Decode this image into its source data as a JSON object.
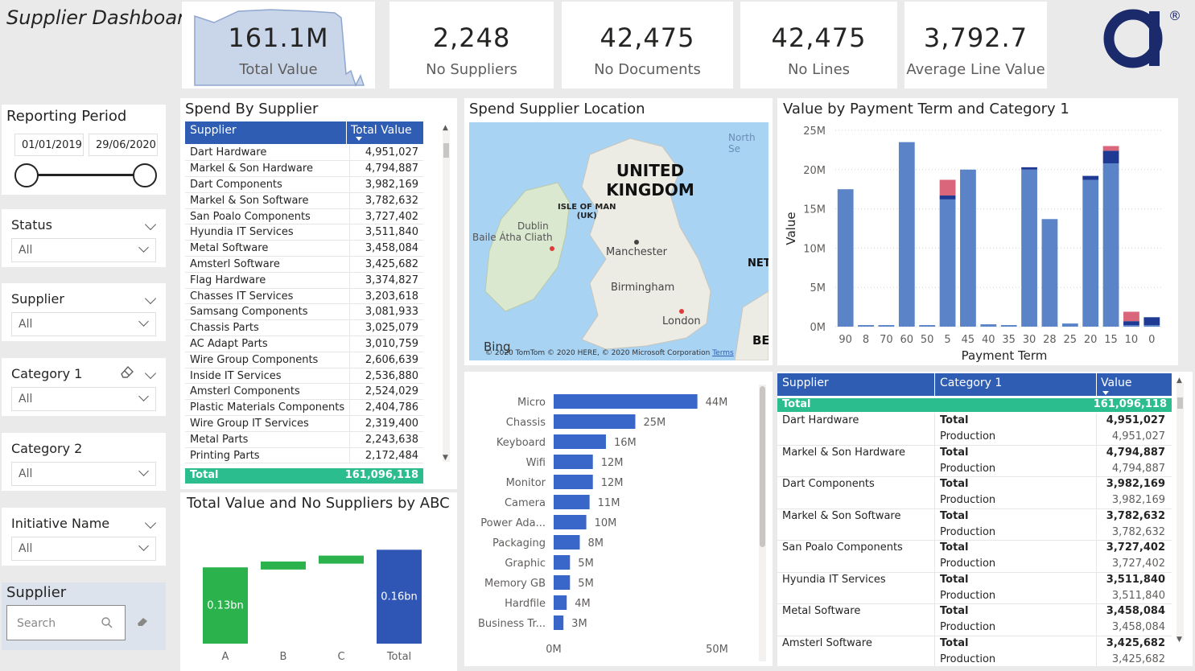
{
  "header": {
    "title": "Supplier Dashboard",
    "logo_registered": "®"
  },
  "kpis": [
    {
      "value": "161.1M",
      "label": "Total Value"
    },
    {
      "value": "2,248",
      "label": "No Suppliers"
    },
    {
      "value": "42,475",
      "label": "No Documents"
    },
    {
      "value": "42,475",
      "label": "No Lines"
    },
    {
      "value": "3,792.7",
      "label": "Average Line Value"
    }
  ],
  "reporting_period": {
    "title": "Reporting Period",
    "start": "01/01/2019",
    "end": "29/06/2020"
  },
  "slicers": [
    {
      "title": "Status",
      "value": "All"
    },
    {
      "title": "Supplier",
      "value": "All"
    },
    {
      "title": "Category 1",
      "value": "All"
    },
    {
      "title": "Category 2",
      "value": "All"
    },
    {
      "title": "Initiative Name",
      "value": "All"
    }
  ],
  "supplier_search": {
    "title": "Supplier",
    "placeholder": "Search"
  },
  "spend_by_supplier": {
    "title": "Spend By Supplier",
    "col_supplier": "Supplier",
    "col_value": "Total Value",
    "rows": [
      [
        "Dart Hardware",
        "4,951,027"
      ],
      [
        "Markel & Son Hardware",
        "4,794,887"
      ],
      [
        "Dart Components",
        "3,982,169"
      ],
      [
        "Markel & Son Software",
        "3,782,632"
      ],
      [
        "San Poalo Components",
        "3,727,402"
      ],
      [
        "Hyundia IT Services",
        "3,511,840"
      ],
      [
        "Metal Software",
        "3,458,084"
      ],
      [
        "Amsterl Software",
        "3,425,682"
      ],
      [
        "Flag Hardware",
        "3,374,827"
      ],
      [
        "Chasses IT Services",
        "3,203,618"
      ],
      [
        "Samsang Components",
        "3,081,933"
      ],
      [
        "Chassis Parts",
        "3,025,079"
      ],
      [
        "AC Adapt Parts",
        "3,010,759"
      ],
      [
        "Wire Group Components",
        "2,606,639"
      ],
      [
        "Inside IT Services",
        "2,536,880"
      ],
      [
        "Amsterl Components",
        "2,524,029"
      ],
      [
        "Plastic Materials Components",
        "2,404,786"
      ],
      [
        "Wire Group IT Services",
        "2,319,400"
      ],
      [
        "Metal Parts",
        "2,243,638"
      ],
      [
        "Printing Parts",
        "2,172,484"
      ]
    ],
    "total_label": "Total",
    "total_value": "161,096,118"
  },
  "map": {
    "title": "Spend  Supplier Location",
    "labels": {
      "uk_line1": "UNITED",
      "uk_line2": "KINGDOM",
      "isle_line1": "ISLE OF MAN",
      "isle_line2": "(UK)",
      "dublin": "Dublin",
      "baile": "Baile Átha Cliath",
      "manchester": "Manchester",
      "birmingham": "Birmingham",
      "london": "London",
      "north_sea": "North Se",
      "net": "NET",
      "be": "BE"
    },
    "bing": "Bing",
    "copyright": "© 2020 TomTom © 2020 HERE, © 2020 Microsoft Corporation",
    "terms": "Terms"
  },
  "payment_chart": {
    "title": "Value by Payment Term and Category 1",
    "ylabel": "Value",
    "xlabel": "Payment Term",
    "colors": {
      "blue": "#5b84c8",
      "red": "#d9667a",
      "navy": "#1f3a93"
    }
  },
  "waterfall": {
    "title": "Total Value and No Suppliers by ABC",
    "colors": {
      "increase": "#2bb24c",
      "total": "#2f55b5"
    }
  },
  "category_chart": {
    "color": "#3867c9"
  },
  "matrix": {
    "col_supplier": "Supplier",
    "col_category": "Category 1",
    "col_value": "Value",
    "total_label": "Total",
    "total_value": "161,096,118",
    "rows": [
      {
        "supplier": "Dart Hardware",
        "total_label": "Total",
        "total": "4,951,027",
        "sub_label": "Production",
        "sub": "4,951,027"
      },
      {
        "supplier": "Markel & Son Hardware",
        "total_label": "Total",
        "total": "4,794,887",
        "sub_label": "Production",
        "sub": "4,794,887"
      },
      {
        "supplier": "Dart Components",
        "total_label": "Total",
        "total": "3,982,169",
        "sub_label": "Production",
        "sub": "3,982,169"
      },
      {
        "supplier": "Markel & Son Software",
        "total_label": "Total",
        "total": "3,782,632",
        "sub_label": "Production",
        "sub": "3,782,632"
      },
      {
        "supplier": "San Poalo Components",
        "total_label": "Total",
        "total": "3,727,402",
        "sub_label": "Production",
        "sub": "3,727,402"
      },
      {
        "supplier": "Hyundia IT Services",
        "total_label": "Total",
        "total": "3,511,840",
        "sub_label": "Production",
        "sub": "3,511,840"
      },
      {
        "supplier": "Metal Software",
        "total_label": "Total",
        "total": "3,458,084",
        "sub_label": "Production",
        "sub": "3,458,084"
      },
      {
        "supplier": "Amsterl Software",
        "total_label": "Total",
        "total": "3,425,682",
        "sub_label": "Production",
        "sub": "3,425,682"
      }
    ]
  },
  "chart_data": [
    {
      "type": "bar",
      "title": "Value by Payment Term and Category 1",
      "xlabel": "Payment Term",
      "ylabel": "Value",
      "ylim": [
        0,
        25000000
      ],
      "yticks": [
        "0M",
        "5M",
        "10M",
        "15M",
        "20M",
        "25M"
      ],
      "categories": [
        "90",
        "8",
        "70",
        "60",
        "50",
        "5",
        "45",
        "40",
        "35",
        "30",
        "28",
        "25",
        "20",
        "15",
        "10",
        "0"
      ],
      "series": [
        {
          "values": [
            17500000,
            200000,
            200000,
            23500000,
            200000,
            16200000,
            20000000,
            300000,
            200000,
            20000000,
            13700000,
            400000,
            18700000,
            20800000,
            200000,
            200000
          ]
        },
        {
          "values": [
            0,
            0,
            0,
            0,
            0,
            2000000,
            0,
            0,
            0,
            0,
            0,
            0,
            0,
            600000,
            1200000,
            0
          ]
        },
        {
          "values": [
            0,
            0,
            0,
            0,
            0,
            500000,
            0,
            0,
            0,
            300000,
            0,
            0,
            500000,
            1600000,
            500000,
            1000000
          ]
        }
      ]
    },
    {
      "type": "bar",
      "title": "",
      "orientation": "horizontal",
      "xlim": [
        0,
        50
      ],
      "xticks": [
        "0M",
        "50M"
      ],
      "categories": [
        "Micro",
        "Chassis",
        "Keyboard",
        "Wifi",
        "Monitor",
        "Camera",
        "Power Ada...",
        "Packaging",
        "Graphic",
        "Memory GB",
        "Hardfile",
        "Business Tr..."
      ],
      "values": [
        44,
        25,
        16,
        12,
        12,
        11,
        10,
        8,
        5,
        5,
        4,
        3
      ],
      "value_labels": [
        "44M",
        "25M",
        "16M",
        "12M",
        "12M",
        "11M",
        "10M",
        "8M",
        "5M",
        "5M",
        "4M",
        "3M"
      ]
    },
    {
      "type": "bar",
      "subtype": "waterfall",
      "title": "Total Value and No Suppliers by ABC",
      "categories": [
        "A",
        "B",
        "C",
        "Total"
      ],
      "values": [
        0.13,
        0.01,
        0.01,
        0.16
      ],
      "value_labels": [
        "0.13bn",
        "",
        "",
        "0.16bn"
      ],
      "ylim": [
        0,
        0.17
      ]
    }
  ]
}
